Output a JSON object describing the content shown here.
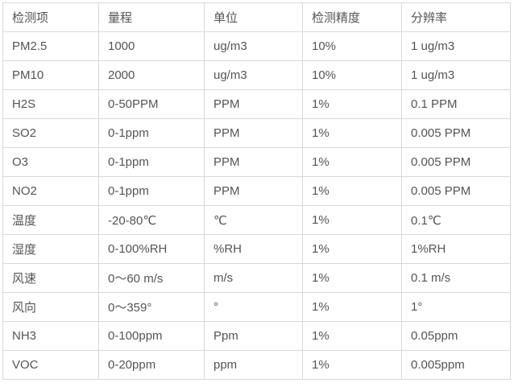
{
  "table": {
    "name": "sensor-spec-table",
    "headers": [
      "检测项",
      "量程",
      "单位",
      "检测精度",
      "分辨率"
    ],
    "rows": [
      [
        "PM2.5",
        "1000",
        "ug/m3",
        "10%",
        "1 ug/m3"
      ],
      [
        "PM10",
        "2000",
        "ug/m3",
        "10%",
        "1 ug/m3"
      ],
      [
        "H2S",
        "0-50PPM",
        "PPM",
        "1%",
        "0.1 PPM"
      ],
      [
        "SO2",
        "0-1ppm",
        "PPM",
        "1%",
        "0.005 PPM"
      ],
      [
        "O3",
        "0-1ppm",
        "PPM",
        "1%",
        "0.005 PPM"
      ],
      [
        "NO2",
        "0-1ppm",
        "PPM",
        "1%",
        "0.005 PPM"
      ],
      [
        "温度",
        "-20-80℃",
        "℃",
        "1%",
        "0.1℃"
      ],
      [
        "湿度",
        "0-100%RH",
        "%RH",
        "1%",
        "1%RH"
      ],
      [
        "风速",
        "0～60 m/s",
        "m/s",
        "1%",
        "0.1 m/s"
      ],
      [
        "风向",
        "0～359°",
        "°",
        "1%",
        "1°"
      ],
      [
        "NH3",
        "0-100ppm",
        "Ppm",
        "1%",
        "0.05ppm"
      ],
      [
        "VOC",
        "0-20ppm",
        "ppm",
        "1%",
        "0.005ppm"
      ]
    ],
    "colors": {
      "border": "#d9d9d9",
      "text": "#555555",
      "background": "#ffffff"
    }
  }
}
